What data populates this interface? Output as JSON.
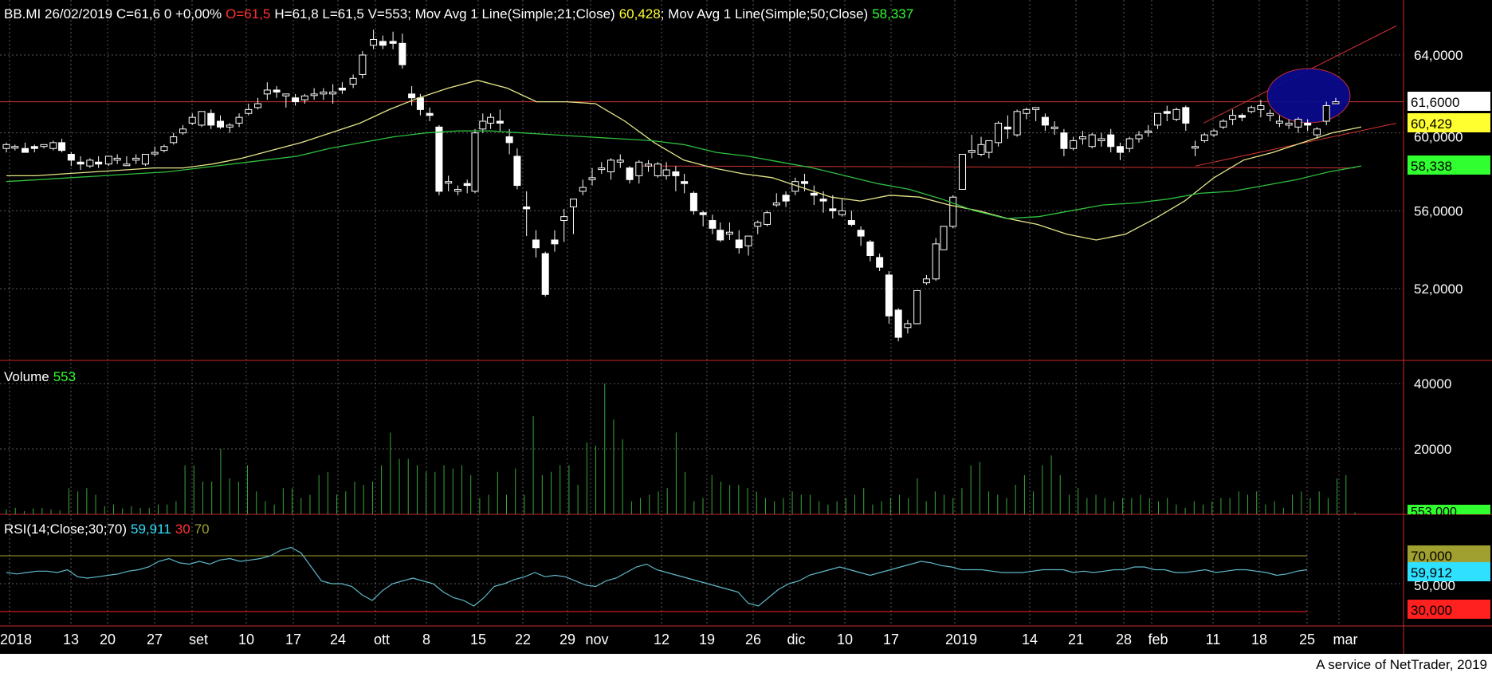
{
  "header": {
    "symbol_info": "BB.MI 26/02/2019 C=61,6 0 +0,00%",
    "open": "O=61,5",
    "hlv": "H=61,8 L=61,5 V=553",
    "ma21_label": "; Mov Avg 1 Line(Simple;21;Close)",
    "ma21_value": "60,428",
    "ma50_label": "; Mov Avg 1 Line(Simple;50;Close)",
    "ma50_value": "58,337"
  },
  "volume_label": "Volume",
  "volume_value": "553",
  "rsi": {
    "label": "RSI(14;Close;30;70)",
    "value": "59,911",
    "low": "30",
    "high": "70"
  },
  "footer": "A service of NetTrader, 2019",
  "colors": {
    "background": "#000000",
    "grid": "#5a5a5a",
    "candle": "#ffffff",
    "ma21": "#e6e68a",
    "ma50": "#2fbf3f",
    "volume": "#37a837",
    "rsi": "#5fb8c8",
    "trendline": "#d23232",
    "ellipse": "#0a0a8c",
    "header_open": "#ff3030",
    "header_ma21": "#ffff30",
    "header_ma50": "#30ff30",
    "rsi_value": "#30e0ff",
    "rsi_high": "#a0a030"
  },
  "chart_data": [
    {
      "type": "candlestick",
      "ylim": [
        48,
        66
      ],
      "yticks": [
        "64,0000",
        "60,0000",
        "56,0000",
        "52,0000"
      ],
      "xticks": [
        "2018",
        "13",
        "20",
        "27",
        "set",
        "10",
        "17",
        "24",
        "ott",
        "8",
        "15",
        "22",
        "29",
        "nov",
        "12",
        "19",
        "26",
        "dic",
        "10",
        "17",
        "2019",
        "14",
        "21",
        "28",
        "feb",
        "11",
        "18",
        "25",
        "mar"
      ],
      "price_tags": [
        {
          "label": "61,6000",
          "value": 61.6,
          "bg": "#ffffff",
          "fg": "#000000"
        },
        {
          "label": "60,429",
          "value": 60.43,
          "bg": "#ffff30",
          "fg": "#000000"
        },
        {
          "label": "58,338",
          "value": 58.34,
          "bg": "#30ff30",
          "fg": "#000000"
        }
      ],
      "series": [
        {
          "name": "Mov Avg 1 Line(Simple;21;Close)",
          "values": [
            57.8,
            57.8,
            57.9,
            58.0,
            58.1,
            58.2,
            58.2,
            58.4,
            58.7,
            59.1,
            59.5,
            60.0,
            60.5,
            61.2,
            61.8,
            62.3,
            62.7,
            62.3,
            61.6,
            61.6,
            61.5,
            60.6,
            59.5,
            58.6,
            58.2,
            57.9,
            57.7,
            57.2,
            56.7,
            56.5,
            56.8,
            56.7,
            56.3,
            56.0,
            55.6,
            55.3,
            54.8,
            54.5,
            54.8,
            55.6,
            56.5,
            57.7,
            58.6,
            59.0,
            59.5,
            60.0,
            60.3
          ]
        },
        {
          "name": "Mov Avg 1 Line(Simple;50;Close)",
          "values": [
            57.5,
            57.6,
            57.7,
            57.8,
            57.9,
            58.0,
            58.2,
            58.4,
            58.6,
            58.8,
            59.2,
            59.5,
            59.8,
            60.0,
            60.1,
            60.1,
            60.0,
            59.9,
            59.8,
            59.7,
            59.6,
            59.4,
            59.0,
            58.8,
            58.5,
            58.2,
            57.8,
            57.4,
            57.1,
            56.6,
            56.0,
            55.6,
            55.7,
            56.0,
            56.3,
            56.4,
            56.6,
            56.9,
            57.0,
            57.3,
            57.6,
            58.0,
            58.3
          ]
        }
      ]
    },
    {
      "type": "bar",
      "title": "Volume",
      "ylim": [
        0,
        45000
      ],
      "yticks": [
        "40000",
        "20000"
      ],
      "last_tag": "553,000"
    },
    {
      "type": "line",
      "title": "RSI(14;Close;30;70)",
      "ylim": [
        20,
        80
      ],
      "yticks": [
        "70,000",
        "50,000",
        "30,000"
      ],
      "levels": [
        70,
        30
      ],
      "tags": [
        {
          "label": "70,000",
          "bg": "#a0a030",
          "fg": "#000000"
        },
        {
          "label": "59,912",
          "bg": "#30e0ff",
          "fg": "#000000"
        },
        {
          "label": "30,000",
          "bg": "#ff2020",
          "fg": "#000000"
        }
      ]
    }
  ]
}
